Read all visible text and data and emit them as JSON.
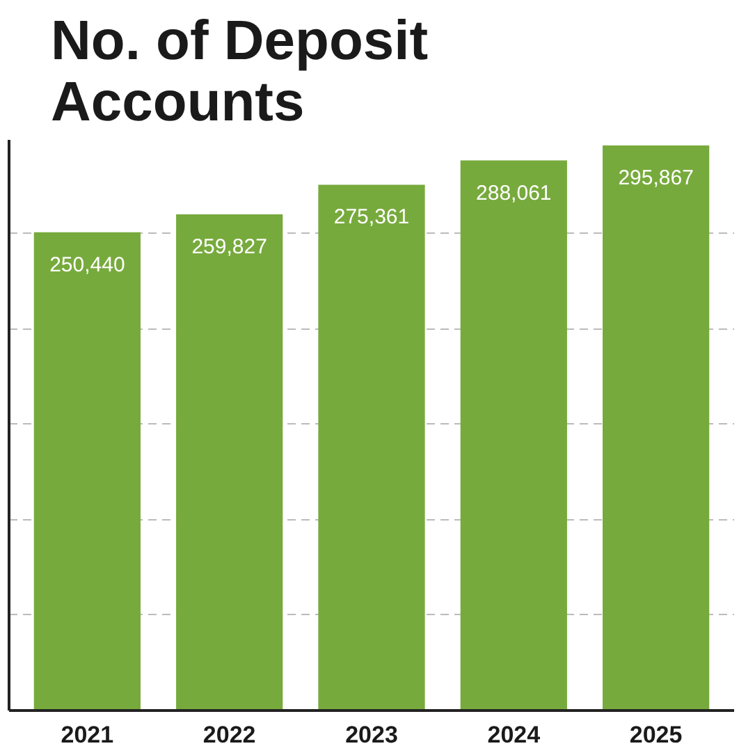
{
  "chart_data": {
    "type": "bar",
    "title": "No. of Deposit\nAccounts",
    "categories": [
      "2021",
      "2022",
      "2023",
      "2024",
      "2025"
    ],
    "values": [
      250440,
      259827,
      275361,
      288061,
      295867
    ],
    "color": "#77aa3c",
    "value_labels": [
      "250,440",
      "259,827",
      "275,361",
      "288,061",
      "295,867"
    ],
    "grid": "y",
    "tick_labels": "x"
  }
}
